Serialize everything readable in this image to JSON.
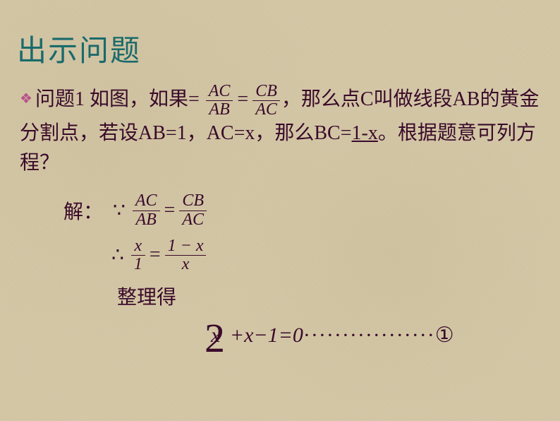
{
  "colors": {
    "title": "#1a6b6b",
    "body_text": "#3a0a2a",
    "bullet": "#b8508a",
    "background": "#d4c8a8"
  },
  "typography": {
    "title_fontsize": 42,
    "title_family": "SimHei",
    "body_fontsize": 28,
    "body_family": "SimSun",
    "fraction_fontsize": 24,
    "fraction_family": "Times New Roman",
    "big2_fontsize": 58
  },
  "title": "出示问题",
  "problem": {
    "bullet": "❖",
    "label": "问题1",
    "pre_frac": "    如图，如果=",
    "frac1": {
      "num": "AC",
      "den": "AB"
    },
    "eq": "=",
    "frac2": {
      "num": "CB",
      "den": "AC"
    },
    "post_frac": "，那么点C叫做线段AB的黄金分割点，若设AB=1，AC=x，那么BC=",
    "bc_value": "1-x",
    "tail": "。根据题意可列方程？"
  },
  "solution": {
    "label": "解：",
    "because": "∵",
    "line1": {
      "frac1": {
        "num": "AC",
        "den": "AB"
      },
      "eq": "=",
      "frac2": {
        "num": "CB",
        "den": "AC"
      }
    },
    "therefore": "∴",
    "line2": {
      "frac1": {
        "num": "x",
        "den": "1"
      },
      "eq": "=",
      "frac2": {
        "num": "1 − x",
        "den": "x"
      }
    },
    "arrange": "整理得",
    "final": {
      "big": "2",
      "x": "x",
      "rest": " +x−1=0",
      "dots": "·················",
      "mark": "①"
    }
  }
}
